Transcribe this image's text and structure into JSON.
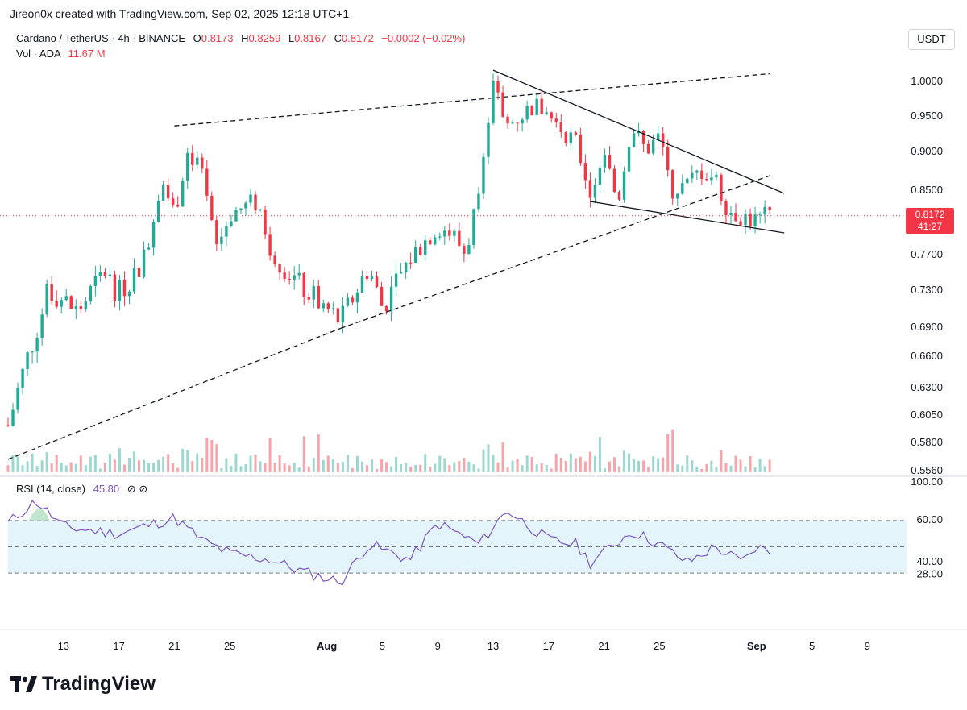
{
  "credit": "Jireon0x created with TradingView.com, Sep 02, 2025 12:18 UTC+1",
  "legend": {
    "symbol": "Cardano / TetherUS · 4h · BINANCE",
    "o_label": "O",
    "o": "0.8173",
    "h_label": "H",
    "h": "0.8259",
    "l_label": "L",
    "l": "0.8167",
    "c_label": "C",
    "c": "0.8172",
    "change": "−0.0002 (−0.02%)",
    "vol_label": "Vol · ADA",
    "vol": "11.67 M"
  },
  "unit": "USDT",
  "price_tag": {
    "price": "0.8172",
    "countdown": "41:27"
  },
  "rsi_legend": {
    "label": "RSI (14, close)",
    "value": "45.80"
  },
  "brand": "TradingView",
  "colors": {
    "up": "#22ab94",
    "down": "#f23645",
    "rsi": "#7e57c2",
    "rsi_band": "#e3f5fb",
    "tag": "#f23645"
  },
  "chart_data": {
    "type": "candlestick",
    "price_axis_ticks": [
      1.0,
      0.95,
      0.9,
      0.85,
      0.817,
      0.77,
      0.73,
      0.69,
      0.66,
      0.63,
      0.605,
      0.58,
      0.556
    ],
    "price_axis_labels": [
      "1.0000",
      "0.9500",
      "0.9000",
      "0.8500",
      "",
      "0.7700",
      "0.7300",
      "0.6900",
      "0.6600",
      "0.6300",
      "0.6050",
      "0.5800",
      "0.5560"
    ],
    "x_ticks": [
      "13",
      "17",
      "21",
      "25",
      "Aug",
      "5",
      "9",
      "13",
      "17",
      "21",
      "25",
      "Sep",
      "5",
      "9"
    ],
    "x_ticks_bold": [
      "Aug",
      "Sep"
    ],
    "rsi_axis_labels": [
      "100.00",
      "60.00",
      "40.00",
      "28.00"
    ],
    "rsi_band": [
      30,
      70
    ],
    "ohlc_path": [
      [
        "Jul 9",
        0.595
      ],
      [
        "Jul 12",
        0.73
      ],
      [
        "Jul 14",
        0.705
      ],
      [
        "Jul 16",
        0.75
      ],
      [
        "Jul 17",
        0.725
      ],
      [
        "Jul 19",
        0.77
      ],
      [
        "Jul 20",
        0.865
      ],
      [
        "Jul 21",
        0.82
      ],
      [
        "Jul 22",
        0.905
      ],
      [
        "Jul 23",
        0.865
      ],
      [
        "Jul 24",
        0.775
      ],
      [
        "Jul 25",
        0.82
      ],
      [
        "Jul 27",
        0.835
      ],
      [
        "Jul 28",
        0.775
      ],
      [
        "Jul 30",
        0.735
      ],
      [
        "Aug 2",
        0.695
      ],
      [
        "Aug 4",
        0.755
      ],
      [
        "Aug 5",
        0.71
      ],
      [
        "Aug 7",
        0.765
      ],
      [
        "Aug 9",
        0.805
      ],
      [
        "Aug 10",
        0.795
      ],
      [
        "Aug 11",
        0.77
      ],
      [
        "Aug 12",
        0.85
      ],
      [
        "Aug 13",
        0.99
      ],
      [
        "Aug 14",
        0.935
      ],
      [
        "Aug 16",
        0.965
      ],
      [
        "Aug 17",
        0.95
      ],
      [
        "Aug 19",
        0.91
      ],
      [
        "Aug 20",
        0.845
      ],
      [
        "Aug 21",
        0.89
      ],
      [
        "Aug 22",
        0.835
      ],
      [
        "Aug 23",
        0.935
      ],
      [
        "Aug 24",
        0.9
      ],
      [
        "Aug 25",
        0.92
      ],
      [
        "Aug 26",
        0.85
      ],
      [
        "Aug 27",
        0.855
      ],
      [
        "Aug 28",
        0.875
      ],
      [
        "Aug 29",
        0.865
      ],
      [
        "Aug 30",
        0.825
      ],
      [
        "Sep 1",
        0.81
      ],
      [
        "Sep 2",
        0.817
      ]
    ],
    "rsi_path": [
      [
        "Jul 9",
        68
      ],
      [
        "Jul 11",
        85
      ],
      [
        "Jul 13",
        65
      ],
      [
        "Jul 17",
        60
      ],
      [
        "Jul 21",
        72
      ],
      [
        "Jul 23",
        55
      ],
      [
        "Jul 25",
        45
      ],
      [
        "Jul 28",
        40
      ],
      [
        "Jul 30",
        32
      ],
      [
        "Aug 2",
        23
      ],
      [
        "Aug 4",
        52
      ],
      [
        "Aug 7",
        40
      ],
      [
        "Aug 9",
        68
      ],
      [
        "Aug 12",
        52
      ],
      [
        "Aug 14",
        78
      ],
      [
        "Aug 17",
        55
      ],
      [
        "Aug 19",
        52
      ],
      [
        "Aug 20",
        38
      ],
      [
        "Aug 23",
        62
      ],
      [
        "Aug 25",
        52
      ],
      [
        "Aug 27",
        38
      ],
      [
        "Aug 29",
        50
      ],
      [
        "Aug 31",
        38
      ],
      [
        "Sep 1",
        50
      ],
      [
        "Sep 2",
        45.8
      ]
    ],
    "trendlines": [
      {
        "style": "dashed",
        "from": [
          "Jul 9",
          0.565
        ],
        "to": [
          "Aug 2",
          0.688
        ]
      },
      {
        "style": "dashed",
        "from": [
          "Aug 2",
          0.688
        ],
        "to": [
          "Sep 2",
          0.868
        ]
      },
      {
        "style": "dashed",
        "from": [
          "Jul 21",
          0.935
        ],
        "to": [
          "Sep 2",
          1.01
        ]
      },
      {
        "style": "solid",
        "from": [
          "Aug 13",
          1.015
        ],
        "to": [
          "Sep 3",
          0.845
        ]
      },
      {
        "style": "solid",
        "from": [
          "Aug 20",
          0.835
        ],
        "to": [
          "Sep 3",
          0.796
        ]
      }
    ]
  }
}
